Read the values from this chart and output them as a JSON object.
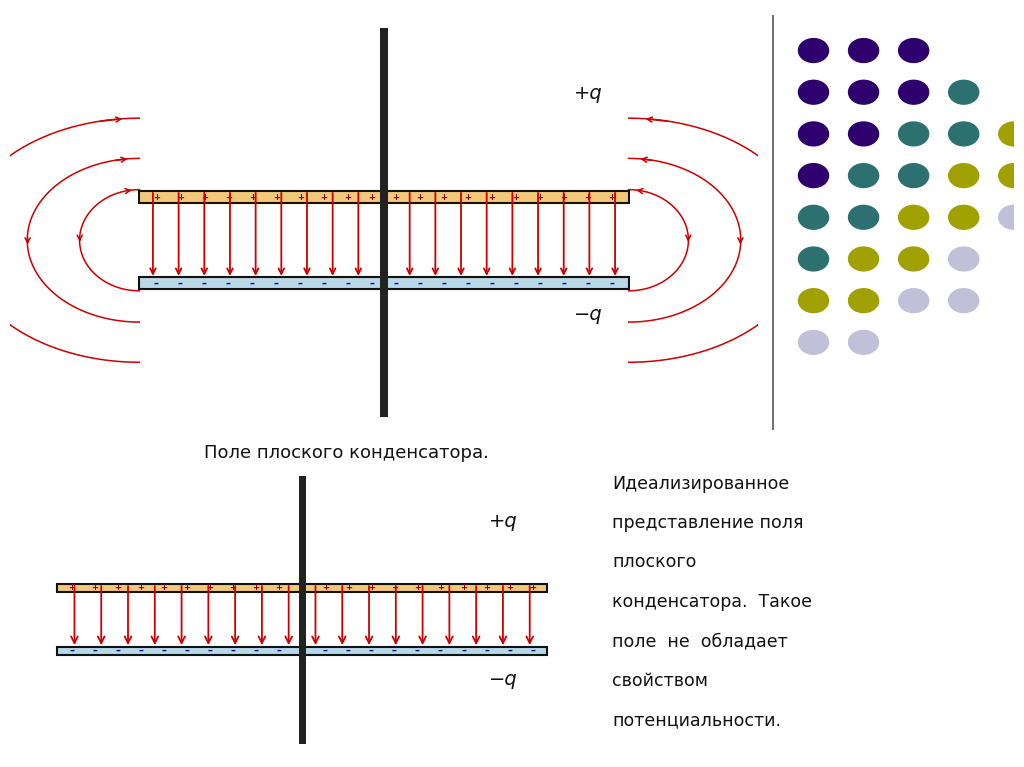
{
  "bg_color": "#F5ECD7",
  "plate_pos_bg": "#F0C878",
  "plate_neg_bg": "#B8D8E8",
  "plate_border": "#111111",
  "arrow_color": "#CC0000",
  "text_color": "#111111",
  "pole_color": "#222222",
  "title_text": "Поле плоского конденсатора.",
  "side_text_lines": [
    "Идеализированное",
    "представление поля",
    "плоского",
    "конденсатора.  Такое",
    "поле  не  обладает",
    "свойством",
    "потенциальности."
  ],
  "plus_label": "+q",
  "minus_label": "−q",
  "dot_rows": [
    [
      "#2d006e",
      "#2d006e",
      "#2d006e"
    ],
    [
      "#2d006e",
      "#2d006e",
      "#2d006e",
      "#2d7070"
    ],
    [
      "#2d006e",
      "#2d006e",
      "#2d7070",
      "#2d7070",
      "#a0a000"
    ],
    [
      "#2d006e",
      "#2d7070",
      "#2d7070",
      "#a0a000",
      "#a0a000"
    ],
    [
      "#2d7070",
      "#2d7070",
      "#a0a000",
      "#a0a000",
      "#c0c0d8"
    ],
    [
      "#2d7070",
      "#a0a000",
      "#a0a000",
      "#c0c0d8"
    ],
    [
      "#a0a000",
      "#a0a000",
      "#c0c0d8",
      "#c0c0d8"
    ],
    [
      "#c0c0d8",
      "#c0c0d8"
    ]
  ],
  "sep_line_color": "#555555"
}
